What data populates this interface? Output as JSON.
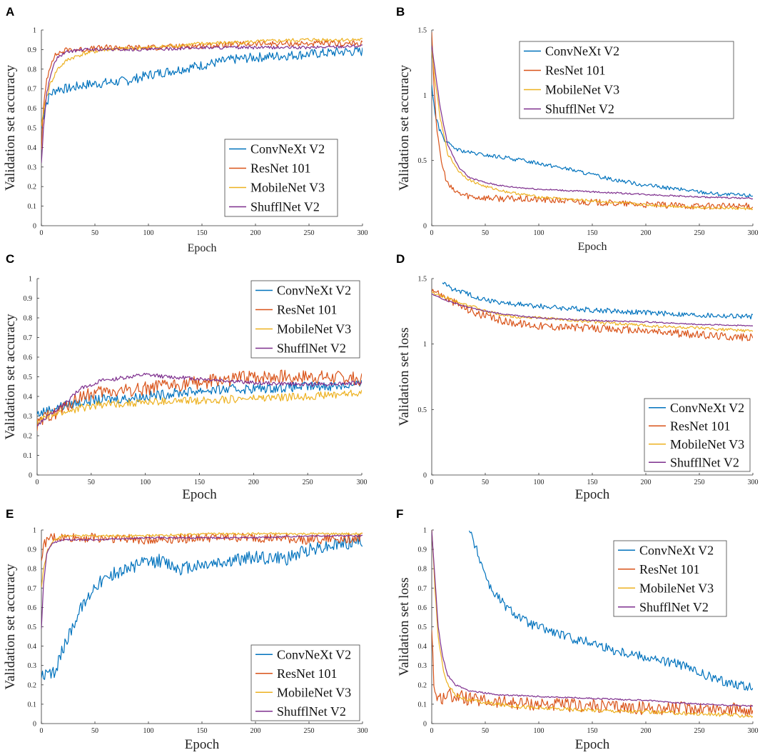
{
  "colors": {
    "ConvNeXt V2": "#0072BD",
    "ResNet 101": "#D95319",
    "MobileNet V3": "#EDB120",
    "ShufflNet V2": "#7E2F8E"
  },
  "chart_data": [
    {
      "panel": "A",
      "type": "line",
      "xlabel": "Epoch",
      "ylabel": "Validation set accuracy",
      "xlim": [
        0,
        300
      ],
      "ylim": [
        0,
        1
      ],
      "xticks": [
        "0",
        "50",
        "100",
        "150",
        "200",
        "250",
        "300"
      ],
      "yticks": [
        "0",
        "0.1",
        "0.2",
        "0.3",
        "0.4",
        "0.5",
        "0.6",
        "0.7",
        "0.8",
        "0.9",
        "1"
      ],
      "legend": "bottom-right",
      "series": [
        {
          "name": "ConvNeXt V2",
          "x": [
            0,
            3,
            8,
            15,
            25,
            40,
            60,
            80,
            100,
            120,
            150,
            180,
            200,
            230,
            260,
            285,
            300
          ],
          "y": [
            0.5,
            0.6,
            0.67,
            0.7,
            0.7,
            0.72,
            0.73,
            0.74,
            0.77,
            0.79,
            0.82,
            0.85,
            0.86,
            0.87,
            0.88,
            0.89,
            0.89
          ],
          "noise": 0.025
        },
        {
          "name": "ResNet 101",
          "x": [
            0,
            2,
            5,
            10,
            15,
            25,
            40,
            60,
            100,
            150,
            200,
            250,
            300
          ],
          "y": [
            0.4,
            0.6,
            0.75,
            0.85,
            0.88,
            0.9,
            0.9,
            0.91,
            0.91,
            0.92,
            0.93,
            0.93,
            0.93
          ],
          "noise": 0.015
        },
        {
          "name": "MobileNet V3",
          "x": [
            0,
            3,
            8,
            15,
            25,
            40,
            60,
            100,
            150,
            200,
            250,
            300
          ],
          "y": [
            0.5,
            0.62,
            0.72,
            0.8,
            0.85,
            0.88,
            0.9,
            0.91,
            0.93,
            0.94,
            0.95,
            0.95
          ],
          "noise": 0.01
        },
        {
          "name": "ShufflNet V2",
          "x": [
            0,
            2,
            5,
            10,
            15,
            25,
            40,
            60,
            100,
            150,
            200,
            250,
            300
          ],
          "y": [
            0.32,
            0.5,
            0.68,
            0.8,
            0.86,
            0.89,
            0.9,
            0.9,
            0.9,
            0.91,
            0.91,
            0.91,
            0.92
          ],
          "noise": 0.008
        }
      ]
    },
    {
      "panel": "B",
      "type": "line",
      "xlabel": "Epoch",
      "ylabel": "Validation set accuracy",
      "xlim": [
        0,
        300
      ],
      "ylim": [
        0,
        1.5
      ],
      "xticks": [
        "0",
        "50",
        "100",
        "150",
        "200",
        "250",
        "300"
      ],
      "yticks": [
        "0",
        "0.5",
        "1",
        "1.5"
      ],
      "legend": "top-right",
      "series": [
        {
          "name": "ConvNeXt V2",
          "x": [
            0,
            3,
            7,
            12,
            18,
            25,
            35,
            50,
            70,
            100,
            130,
            160,
            200,
            240,
            270,
            300
          ],
          "y": [
            1.08,
            0.86,
            0.74,
            0.66,
            0.61,
            0.58,
            0.56,
            0.54,
            0.52,
            0.48,
            0.43,
            0.37,
            0.31,
            0.27,
            0.24,
            0.23
          ],
          "noise": 0.015
        },
        {
          "name": "ResNet 101",
          "x": [
            0,
            2,
            5,
            10,
            15,
            20,
            28,
            40,
            60,
            100,
            150,
            200,
            250,
            300
          ],
          "y": [
            1.5,
            1.1,
            0.7,
            0.45,
            0.32,
            0.27,
            0.24,
            0.22,
            0.21,
            0.2,
            0.18,
            0.16,
            0.15,
            0.15
          ],
          "noise": 0.025
        },
        {
          "name": "MobileNet V3",
          "x": [
            0,
            3,
            8,
            15,
            25,
            35,
            50,
            70,
            100,
            150,
            200,
            250,
            300
          ],
          "y": [
            1.35,
            1.12,
            0.82,
            0.55,
            0.42,
            0.35,
            0.3,
            0.26,
            0.22,
            0.19,
            0.16,
            0.14,
            0.13
          ],
          "noise": 0.01
        },
        {
          "name": "ShufflNet V2",
          "x": [
            0,
            3,
            8,
            15,
            25,
            35,
            50,
            70,
            100,
            150,
            200,
            250,
            300
          ],
          "y": [
            1.38,
            1.2,
            0.9,
            0.62,
            0.45,
            0.37,
            0.33,
            0.3,
            0.28,
            0.26,
            0.24,
            0.22,
            0.21
          ],
          "noise": 0.006
        }
      ]
    },
    {
      "panel": "C",
      "type": "line",
      "xlabel": "Epoch",
      "ylabel": "Validation set accuracy",
      "xlim": [
        0,
        300
      ],
      "ylim": [
        0,
        1
      ],
      "xticks": [
        "0",
        "50",
        "100",
        "150",
        "200",
        "250",
        "300"
      ],
      "yticks": [
        "0",
        "0.1",
        "0.2",
        "0.3",
        "0.4",
        "0.5",
        "0.6",
        "0.7",
        "0.8",
        "0.9",
        "1"
      ],
      "legend": "top-right",
      "series": [
        {
          "name": "ConvNeXt V2",
          "x": [
            0,
            10,
            30,
            50,
            80,
            100,
            150,
            200,
            250,
            300
          ],
          "y": [
            0.31,
            0.33,
            0.36,
            0.38,
            0.39,
            0.4,
            0.43,
            0.44,
            0.45,
            0.46
          ],
          "noise": 0.025
        },
        {
          "name": "ResNet 101",
          "x": [
            0,
            10,
            25,
            40,
            60,
            100,
            150,
            200,
            250,
            300
          ],
          "y": [
            0.25,
            0.3,
            0.34,
            0.4,
            0.42,
            0.44,
            0.47,
            0.5,
            0.5,
            0.49
          ],
          "noise": 0.035
        },
        {
          "name": "MobileNet V3",
          "x": [
            0,
            10,
            25,
            40,
            60,
            100,
            150,
            200,
            250,
            300
          ],
          "y": [
            0.27,
            0.3,
            0.32,
            0.34,
            0.36,
            0.37,
            0.38,
            0.39,
            0.4,
            0.42
          ],
          "noise": 0.02
        },
        {
          "name": "ShufflNet V2",
          "x": [
            0,
            10,
            25,
            40,
            60,
            100,
            120,
            150,
            200,
            250,
            300
          ],
          "y": [
            0.25,
            0.3,
            0.36,
            0.44,
            0.48,
            0.51,
            0.5,
            0.49,
            0.47,
            0.46,
            0.47
          ],
          "noise": 0.01
        }
      ]
    },
    {
      "panel": "D",
      "type": "line",
      "xlabel": "Epoch",
      "ylabel": "Validation set loss",
      "xlim": [
        0,
        300
      ],
      "ylim": [
        0,
        1.5
      ],
      "xticks": [
        "0",
        "50",
        "100",
        "150",
        "200",
        "250",
        "300"
      ],
      "yticks": [
        "0",
        "0.5",
        "1",
        "1.5"
      ],
      "legend": "bottom-right",
      "series": [
        {
          "name": "ConvNeXt V2",
          "x": [
            10,
            20,
            35,
            50,
            70,
            100,
            150,
            200,
            250,
            300
          ],
          "y": [
            1.47,
            1.42,
            1.38,
            1.34,
            1.31,
            1.29,
            1.26,
            1.24,
            1.22,
            1.21
          ],
          "noise": 0.02
        },
        {
          "name": "ResNet 101",
          "x": [
            0,
            10,
            25,
            40,
            55,
            70,
            100,
            150,
            200,
            250,
            300
          ],
          "y": [
            1.42,
            1.37,
            1.3,
            1.24,
            1.2,
            1.17,
            1.14,
            1.12,
            1.1,
            1.07,
            1.05
          ],
          "noise": 0.03
        },
        {
          "name": "MobileNet V3",
          "x": [
            0,
            15,
            30,
            50,
            75,
            100,
            150,
            200,
            250,
            300
          ],
          "y": [
            1.39,
            1.35,
            1.31,
            1.25,
            1.21,
            1.2,
            1.17,
            1.14,
            1.12,
            1.1
          ],
          "noise": 0.012
        },
        {
          "name": "ShufflNet V2",
          "x": [
            0,
            15,
            30,
            50,
            75,
            100,
            150,
            200,
            250,
            300
          ],
          "y": [
            1.38,
            1.33,
            1.29,
            1.25,
            1.22,
            1.2,
            1.18,
            1.17,
            1.15,
            1.14
          ],
          "noise": 0.005
        }
      ]
    },
    {
      "panel": "E",
      "type": "line",
      "xlabel": "Epoch",
      "ylabel": "Validation set accuracy",
      "xlim": [
        0,
        300
      ],
      "ylim": [
        0,
        1
      ],
      "xticks": [
        "0",
        "50",
        "100",
        "150",
        "200",
        "250",
        "300"
      ],
      "yticks": [
        "0",
        "0.1",
        "0.2",
        "0.3",
        "0.4",
        "0.5",
        "0.6",
        "0.7",
        "0.8",
        "0.9",
        "1"
      ],
      "legend": "bottom-right",
      "series": [
        {
          "name": "ConvNeXt V2",
          "x": [
            0,
            12,
            20,
            30,
            40,
            50,
            70,
            90,
            110,
            130,
            150,
            180,
            200,
            230,
            250,
            270,
            300
          ],
          "y": [
            0.24,
            0.26,
            0.38,
            0.52,
            0.62,
            0.72,
            0.78,
            0.82,
            0.84,
            0.8,
            0.82,
            0.84,
            0.86,
            0.85,
            0.9,
            0.92,
            0.95
          ],
          "noise": 0.035
        },
        {
          "name": "ResNet 101",
          "x": [
            0,
            3,
            8,
            15,
            30,
            60,
            100,
            150,
            200,
            250,
            300
          ],
          "y": [
            0.86,
            0.93,
            0.96,
            0.96,
            0.96,
            0.96,
            0.95,
            0.96,
            0.96,
            0.95,
            0.96
          ],
          "noise": 0.025
        },
        {
          "name": "MobileNet V3",
          "x": [
            0,
            2,
            6,
            12,
            20,
            50,
            100,
            150,
            200,
            250,
            300
          ],
          "y": [
            0.7,
            0.8,
            0.9,
            0.95,
            0.97,
            0.97,
            0.97,
            0.98,
            0.98,
            0.98,
            0.98
          ],
          "noise": 0.006
        },
        {
          "name": "ShufflNet V2",
          "x": [
            0,
            2,
            5,
            10,
            20,
            50,
            100,
            150,
            200,
            250,
            300
          ],
          "y": [
            0.49,
            0.72,
            0.88,
            0.93,
            0.95,
            0.95,
            0.96,
            0.96,
            0.96,
            0.97,
            0.97
          ],
          "noise": 0.004
        }
      ]
    },
    {
      "panel": "F",
      "type": "line",
      "xlabel": "Epoch",
      "ylabel": "Validation set loss",
      "xlim": [
        0,
        300
      ],
      "ylim": [
        0,
        1
      ],
      "xticks": [
        "0",
        "50",
        "100",
        "150",
        "200",
        "250",
        "300"
      ],
      "yticks": [
        "0",
        "0.1",
        "0.2",
        "0.3",
        "0.4",
        "0.5",
        "0.6",
        "0.7",
        "0.8",
        "0.9",
        "1"
      ],
      "legend": "top-right",
      "series": [
        {
          "name": "ConvNeXt V2",
          "x": [
            35,
            45,
            55,
            70,
            90,
            110,
            130,
            150,
            170,
            190,
            210,
            230,
            250,
            270,
            290,
            300
          ],
          "y": [
            1.0,
            0.85,
            0.7,
            0.6,
            0.52,
            0.48,
            0.44,
            0.42,
            0.38,
            0.36,
            0.33,
            0.31,
            0.26,
            0.22,
            0.2,
            0.18
          ],
          "noise": 0.025
        },
        {
          "name": "ResNet 101",
          "x": [
            0,
            2,
            4,
            8,
            15,
            25,
            40,
            60,
            100,
            150,
            200,
            250,
            300
          ],
          "y": [
            0.51,
            0.2,
            0.14,
            0.13,
            0.15,
            0.14,
            0.12,
            0.11,
            0.1,
            0.09,
            0.08,
            0.08,
            0.07
          ],
          "noise": 0.035
        },
        {
          "name": "MobileNet V3",
          "x": [
            0,
            3,
            6,
            10,
            15,
            22,
            35,
            60,
            100,
            150,
            200,
            250,
            300
          ],
          "y": [
            1.0,
            0.7,
            0.45,
            0.3,
            0.2,
            0.15,
            0.12,
            0.1,
            0.08,
            0.07,
            0.06,
            0.05,
            0.04
          ],
          "noise": 0.01
        },
        {
          "name": "ShufflNet V2",
          "x": [
            0,
            3,
            6,
            10,
            15,
            22,
            35,
            60,
            100,
            150,
            200,
            250,
            300
          ],
          "y": [
            1.0,
            0.75,
            0.5,
            0.35,
            0.25,
            0.2,
            0.17,
            0.15,
            0.14,
            0.13,
            0.12,
            0.1,
            0.09
          ],
          "noise": 0.004
        }
      ]
    }
  ]
}
